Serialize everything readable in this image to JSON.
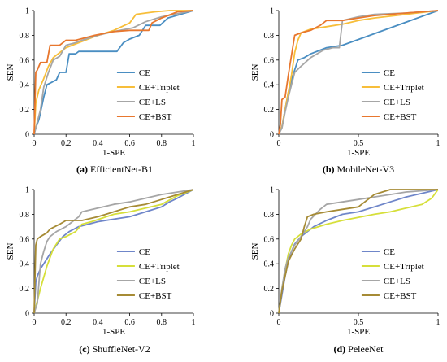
{
  "chart_data": [
    {
      "type": "line",
      "panel_label": "(a)",
      "caption": "EfficientNet-B1",
      "xlabel": "1-SPE",
      "ylabel": "SEN",
      "xlim": [
        0,
        1
      ],
      "ylim": [
        0,
        1
      ],
      "xticks": [
        "0",
        "0.2",
        "0.4",
        "0.6",
        "0.8",
        "1"
      ],
      "yticks": [
        "0",
        "0.2",
        "0.4",
        "0.6",
        "0.8",
        "1"
      ],
      "grid": false,
      "legend_position": "bottom-right",
      "series": [
        {
          "name": "CE",
          "color": "#4a8ec2",
          "x": [
            0,
            0.01,
            0.03,
            0.06,
            0.08,
            0.11,
            0.14,
            0.16,
            0.2,
            0.22,
            0.26,
            0.28,
            0.35,
            0.4,
            0.52,
            0.56,
            0.6,
            0.66,
            0.7,
            0.79,
            0.84,
            1
          ],
          "y": [
            0,
            0.05,
            0.12,
            0.3,
            0.4,
            0.42,
            0.44,
            0.5,
            0.5,
            0.65,
            0.65,
            0.67,
            0.67,
            0.67,
            0.67,
            0.74,
            0.77,
            0.8,
            0.88,
            0.88,
            0.94,
            1
          ]
        },
        {
          "name": "CE+Triplet",
          "color": "#f7be3a",
          "x": [
            0,
            0.01,
            0.03,
            0.06,
            0.09,
            0.12,
            0.16,
            0.2,
            0.28,
            0.38,
            0.5,
            0.6,
            0.64,
            0.7,
            0.76,
            0.85,
            1
          ],
          "y": [
            0,
            0.25,
            0.36,
            0.45,
            0.55,
            0.62,
            0.66,
            0.7,
            0.74,
            0.79,
            0.84,
            0.9,
            0.97,
            0.98,
            0.99,
            1,
            1
          ]
        },
        {
          "name": "CE+LS",
          "color": "#a6a6a6",
          "x": [
            0,
            0.02,
            0.04,
            0.06,
            0.09,
            0.12,
            0.16,
            0.2,
            0.26,
            0.3,
            0.4,
            0.5,
            0.62,
            0.7,
            0.8,
            1
          ],
          "y": [
            0,
            0.1,
            0.2,
            0.38,
            0.5,
            0.6,
            0.63,
            0.72,
            0.74,
            0.76,
            0.8,
            0.83,
            0.86,
            0.91,
            0.95,
            1
          ]
        },
        {
          "name": "CE+BST",
          "color": "#e8772e",
          "x": [
            0,
            0.01,
            0.02,
            0.04,
            0.08,
            0.1,
            0.16,
            0.2,
            0.26,
            0.38,
            0.5,
            0.6,
            0.66,
            0.72,
            0.74,
            0.8,
            0.9,
            1
          ],
          "y": [
            0,
            0.5,
            0.52,
            0.58,
            0.58,
            0.72,
            0.72,
            0.76,
            0.76,
            0.8,
            0.83,
            0.84,
            0.84,
            0.84,
            0.9,
            0.94,
            0.99,
            1
          ]
        }
      ]
    },
    {
      "type": "line",
      "panel_label": "(b)",
      "caption": "MobileNet-V3",
      "xlabel": "1-SPE",
      "ylabel": "SEN",
      "xlim": [
        0,
        1
      ],
      "ylim": [
        0,
        1
      ],
      "xticks": [
        "0",
        "0.5",
        "1"
      ],
      "yticks": [
        "0",
        "0.2",
        "0.4",
        "0.6",
        "0.8",
        "1"
      ],
      "grid": false,
      "legend_position": "bottom-right",
      "series": [
        {
          "name": "CE",
          "color": "#4a8ec2",
          "x": [
            0,
            0.02,
            0.04,
            0.06,
            0.08,
            0.1,
            0.12,
            0.16,
            0.2,
            0.26,
            0.3,
            0.4,
            1
          ],
          "y": [
            0,
            0.06,
            0.2,
            0.34,
            0.44,
            0.52,
            0.6,
            0.62,
            0.65,
            0.68,
            0.7,
            0.72,
            1
          ]
        },
        {
          "name": "CE+Triplet",
          "color": "#f7be3a",
          "x": [
            0,
            0.02,
            0.04,
            0.06,
            0.08,
            0.1,
            0.12,
            0.14,
            0.2,
            0.3,
            0.4,
            0.5,
            0.6,
            0.8,
            1
          ],
          "y": [
            0,
            0.06,
            0.2,
            0.34,
            0.48,
            0.66,
            0.76,
            0.82,
            0.85,
            0.87,
            0.89,
            0.92,
            0.94,
            0.97,
            1
          ]
        },
        {
          "name": "CE+LS",
          "color": "#a6a6a6",
          "x": [
            0,
            0.02,
            0.04,
            0.06,
            0.08,
            0.1,
            0.14,
            0.2,
            0.28,
            0.34,
            0.38,
            0.4,
            0.5,
            0.6,
            0.8,
            1
          ],
          "y": [
            0,
            0.05,
            0.18,
            0.3,
            0.4,
            0.5,
            0.55,
            0.62,
            0.68,
            0.7,
            0.7,
            0.92,
            0.95,
            0.97,
            0.98,
            1
          ]
        },
        {
          "name": "CE+BST",
          "color": "#e8772e",
          "x": [
            0,
            0.01,
            0.02,
            0.04,
            0.06,
            0.1,
            0.14,
            0.2,
            0.26,
            0.3,
            0.4,
            0.5,
            0.6,
            0.8,
            1
          ],
          "y": [
            0,
            0.08,
            0.28,
            0.3,
            0.48,
            0.8,
            0.82,
            0.84,
            0.88,
            0.92,
            0.92,
            0.94,
            0.96,
            0.98,
            1
          ]
        }
      ]
    },
    {
      "type": "line",
      "panel_label": "(c)",
      "caption": "ShuffleNet-V2",
      "xlabel": "1-SPE",
      "ylabel": "SEN",
      "xlim": [
        0,
        1
      ],
      "ylim": [
        0,
        1
      ],
      "xticks": [
        "0",
        "0.2",
        "0.4",
        "0.6",
        "0.8",
        "1"
      ],
      "yticks": [
        "0",
        "0.2",
        "0.4",
        "0.6",
        "0.8",
        "1"
      ],
      "grid": false,
      "legend_position": "bottom-right",
      "series": [
        {
          "name": "CE",
          "color": "#6f86c9",
          "x": [
            0,
            0.01,
            0.02,
            0.04,
            0.06,
            0.08,
            0.1,
            0.14,
            0.18,
            0.22,
            0.28,
            0.34,
            0.4,
            0.6,
            0.7,
            0.8,
            0.85,
            0.9,
            1
          ],
          "y": [
            0,
            0.25,
            0.3,
            0.36,
            0.4,
            0.44,
            0.48,
            0.55,
            0.62,
            0.66,
            0.7,
            0.72,
            0.74,
            0.78,
            0.82,
            0.86,
            0.9,
            0.93,
            1
          ]
        },
        {
          "name": "CE+Triplet",
          "color": "#d6df3a",
          "x": [
            0,
            0.04,
            0.08,
            0.12,
            0.16,
            0.2,
            0.26,
            0.3,
            0.36,
            0.5,
            0.6,
            0.7,
            0.8,
            0.9,
            1
          ],
          "y": [
            0,
            0.2,
            0.38,
            0.52,
            0.6,
            0.62,
            0.66,
            0.72,
            0.74,
            0.8,
            0.82,
            0.85,
            0.88,
            0.95,
            1
          ]
        },
        {
          "name": "CE+LS",
          "color": "#a6a6a6",
          "x": [
            0,
            0.02,
            0.04,
            0.06,
            0.08,
            0.1,
            0.14,
            0.2,
            0.24,
            0.28,
            0.3,
            0.4,
            0.5,
            0.6,
            0.7,
            0.8,
            1
          ],
          "y": [
            0,
            0.08,
            0.4,
            0.5,
            0.58,
            0.62,
            0.66,
            0.7,
            0.74,
            0.78,
            0.82,
            0.85,
            0.88,
            0.9,
            0.93,
            0.96,
            1
          ]
        },
        {
          "name": "CE+BST",
          "color": "#a68b35",
          "x": [
            0,
            0.01,
            0.02,
            0.04,
            0.08,
            0.1,
            0.16,
            0.2,
            0.3,
            0.4,
            0.5,
            0.6,
            0.7,
            0.8,
            0.9,
            1
          ],
          "y": [
            0,
            0.55,
            0.6,
            0.62,
            0.65,
            0.68,
            0.72,
            0.75,
            0.75,
            0.78,
            0.82,
            0.86,
            0.88,
            0.92,
            0.96,
            1
          ]
        }
      ]
    },
    {
      "type": "line",
      "panel_label": "(d)",
      "caption": "PeleeNet",
      "xlabel": "1-SPE",
      "ylabel": "SEN",
      "xlim": [
        0,
        1
      ],
      "ylim": [
        0,
        1
      ],
      "xticks": [
        "0",
        "0.5",
        "1"
      ],
      "yticks": [
        "0",
        "0.2",
        "0.4",
        "0.6",
        "0.8",
        "1"
      ],
      "grid": false,
      "legend_position": "bottom-right",
      "series": [
        {
          "name": "CE",
          "color": "#6f86c9",
          "x": [
            0,
            0.02,
            0.04,
            0.06,
            0.08,
            0.1,
            0.14,
            0.18,
            0.22,
            0.3,
            0.4,
            0.5,
            0.6,
            0.7,
            0.8,
            0.9,
            1
          ],
          "y": [
            0,
            0.15,
            0.3,
            0.42,
            0.5,
            0.56,
            0.62,
            0.66,
            0.7,
            0.75,
            0.8,
            0.82,
            0.86,
            0.9,
            0.94,
            0.97,
            1
          ]
        },
        {
          "name": "CE+Triplet",
          "color": "#d6df3a",
          "x": [
            0,
            0.02,
            0.04,
            0.06,
            0.08,
            0.1,
            0.14,
            0.2,
            0.3,
            0.4,
            0.6,
            0.7,
            0.8,
            0.9,
            0.96,
            1
          ],
          "y": [
            0,
            0.2,
            0.35,
            0.48,
            0.55,
            0.6,
            0.64,
            0.68,
            0.72,
            0.75,
            0.8,
            0.82,
            0.85,
            0.88,
            0.93,
            1
          ]
        },
        {
          "name": "CE+LS",
          "color": "#a6a6a6",
          "x": [
            0,
            0.02,
            0.04,
            0.06,
            0.1,
            0.14,
            0.18,
            0.2,
            0.26,
            0.3,
            0.4,
            0.5,
            0.6,
            0.7,
            0.8,
            1
          ],
          "y": [
            0,
            0.2,
            0.36,
            0.45,
            0.55,
            0.62,
            0.7,
            0.76,
            0.84,
            0.88,
            0.9,
            0.92,
            0.94,
            0.96,
            0.98,
            1
          ]
        },
        {
          "name": "CE+BST",
          "color": "#a68b35",
          "x": [
            0,
            0.02,
            0.04,
            0.06,
            0.1,
            0.14,
            0.16,
            0.18,
            0.22,
            0.3,
            0.4,
            0.5,
            0.6,
            0.7,
            1
          ],
          "y": [
            0,
            0.18,
            0.3,
            0.42,
            0.52,
            0.6,
            0.7,
            0.78,
            0.8,
            0.82,
            0.84,
            0.86,
            0.96,
            1,
            1
          ]
        }
      ]
    }
  ]
}
